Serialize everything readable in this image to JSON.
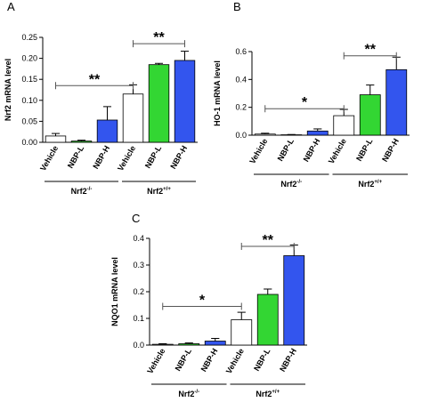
{
  "chart_data": [
    {
      "type": "bar",
      "panel": "A",
      "ylabel": "Nrf2 mRNA level",
      "categories": [
        "Vehicle",
        "NBP-L",
        "NBP-H",
        "Vehicle",
        "NBP-L",
        "NBP-H"
      ],
      "values": [
        0.015,
        0.003,
        0.053,
        0.115,
        0.185,
        0.195
      ],
      "errors": [
        0.006,
        0.002,
        0.032,
        0.022,
        0.003,
        0.022
      ],
      "colors": [
        "#ffffff",
        "#33d633",
        "#3355ee",
        "#ffffff",
        "#33d633",
        "#3355ee"
      ],
      "groups": [
        {
          "label": "Nrf2",
          "sup": "-/-",
          "from": 0,
          "to": 2
        },
        {
          "label": "Nrf2",
          "sup": "+/+",
          "from": 3,
          "to": 5
        }
      ],
      "annotations": [
        {
          "text": "**",
          "y": 0.135,
          "from": 0,
          "to": 3
        },
        {
          "text": "**",
          "y": 0.235,
          "from": 3,
          "to": 5
        }
      ],
      "ylim": [
        0,
        0.25
      ],
      "yticks": [
        {
          "value": 0,
          "label": "0.00"
        },
        {
          "value": 0.05,
          "label": "0.05"
        },
        {
          "value": 0.1,
          "label": "0.10"
        },
        {
          "value": 0.15,
          "label": "0.15"
        },
        {
          "value": 0.2,
          "label": "0.20"
        },
        {
          "value": 0.25,
          "label": "0.25"
        }
      ]
    },
    {
      "type": "bar",
      "panel": "B",
      "ylabel": "HO-1 mRNA level",
      "categories": [
        "Vehicle",
        "NBP-L",
        "NBP-H",
        "Vehicle",
        "NBP-L",
        "NBP-H"
      ],
      "values": [
        0.008,
        0.003,
        0.03,
        0.14,
        0.29,
        0.47
      ],
      "errors": [
        0.006,
        0.002,
        0.015,
        0.045,
        0.07,
        0.09
      ],
      "colors": [
        "#ffffff",
        "#33d633",
        "#3355ee",
        "#ffffff",
        "#33d633",
        "#3355ee"
      ],
      "groups": [
        {
          "label": "Nrf2",
          "sup": "-/-",
          "from": 0,
          "to": 2
        },
        {
          "label": "Nrf2",
          "sup": "+/+",
          "from": 3,
          "to": 5
        }
      ],
      "annotations": [
        {
          "text": "*",
          "y": 0.19,
          "from": 0,
          "to": 3
        },
        {
          "text": "**",
          "y": 0.57,
          "from": 3,
          "to": 5
        }
      ],
      "ylim": [
        0,
        0.6
      ],
      "yticks": [
        {
          "value": 0,
          "label": "0.0"
        },
        {
          "value": 0.2,
          "label": "0.2"
        },
        {
          "value": 0.4,
          "label": "0.4"
        },
        {
          "value": 0.6,
          "label": "0.6"
        }
      ]
    },
    {
      "type": "bar",
      "panel": "C",
      "ylabel": "NQO1 mRNA level",
      "categories": [
        "Vehicle",
        "NBP-L",
        "NBP-H",
        "Vehicle",
        "NBP-L",
        "NBP-H"
      ],
      "values": [
        0.003,
        0.005,
        0.015,
        0.095,
        0.19,
        0.335
      ],
      "errors": [
        0.002,
        0.003,
        0.01,
        0.028,
        0.02,
        0.04
      ],
      "colors": [
        "#ffffff",
        "#33d633",
        "#3355ee",
        "#ffffff",
        "#33d633",
        "#3355ee"
      ],
      "groups": [
        {
          "label": "Nrf2",
          "sup": "-/-",
          "from": 0,
          "to": 2
        },
        {
          "label": "Nrf2",
          "sup": "+/+",
          "from": 3,
          "to": 5
        }
      ],
      "annotations": [
        {
          "text": "*",
          "y": 0.145,
          "from": 0,
          "to": 3
        },
        {
          "text": "**",
          "y": 0.37,
          "from": 3,
          "to": 5
        }
      ],
      "ylim": [
        0,
        0.4
      ],
      "yticks": [
        {
          "value": 0,
          "label": "0.0"
        },
        {
          "value": 0.1,
          "label": "0.1"
        },
        {
          "value": 0.2,
          "label": "0.2"
        },
        {
          "value": 0.3,
          "label": "0.3"
        },
        {
          "value": 0.4,
          "label": "0.4"
        }
      ]
    }
  ]
}
